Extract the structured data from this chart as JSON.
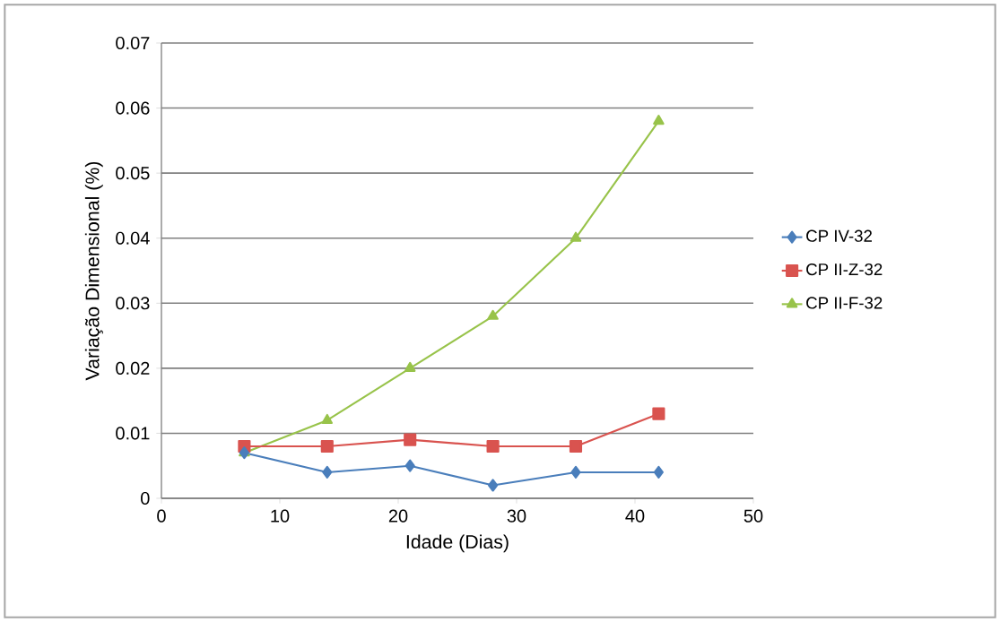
{
  "chart_data": {
    "type": "line",
    "xlabel": "Idade (Dias)",
    "ylabel": "Variação Dimensional (%)",
    "x": [
      7,
      14,
      21,
      28,
      35,
      42
    ],
    "series": [
      {
        "name": "CP IV-32",
        "color": "#4a7ebb",
        "marker": "diamond",
        "values": [
          0.007,
          0.004,
          0.005,
          0.002,
          0.004,
          0.004
        ]
      },
      {
        "name": "CP II-Z-32",
        "color": "#d9534f",
        "marker": "square",
        "values": [
          0.008,
          0.008,
          0.009,
          0.008,
          0.008,
          0.013
        ]
      },
      {
        "name": "CP II-F-32",
        "color": "#98c34a",
        "marker": "triangle",
        "values": [
          0.007,
          0.012,
          0.02,
          0.028,
          0.04,
          0.058
        ]
      }
    ],
    "xlim": [
      0,
      50
    ],
    "xticks": [
      0,
      10,
      20,
      30,
      40,
      50
    ],
    "ylim": [
      0,
      0.07
    ],
    "yticks": [
      0,
      0.01,
      0.02,
      0.03,
      0.04,
      0.05,
      0.06,
      0.07
    ],
    "grid": "y",
    "legend": "right",
    "line_style": "solid"
  }
}
